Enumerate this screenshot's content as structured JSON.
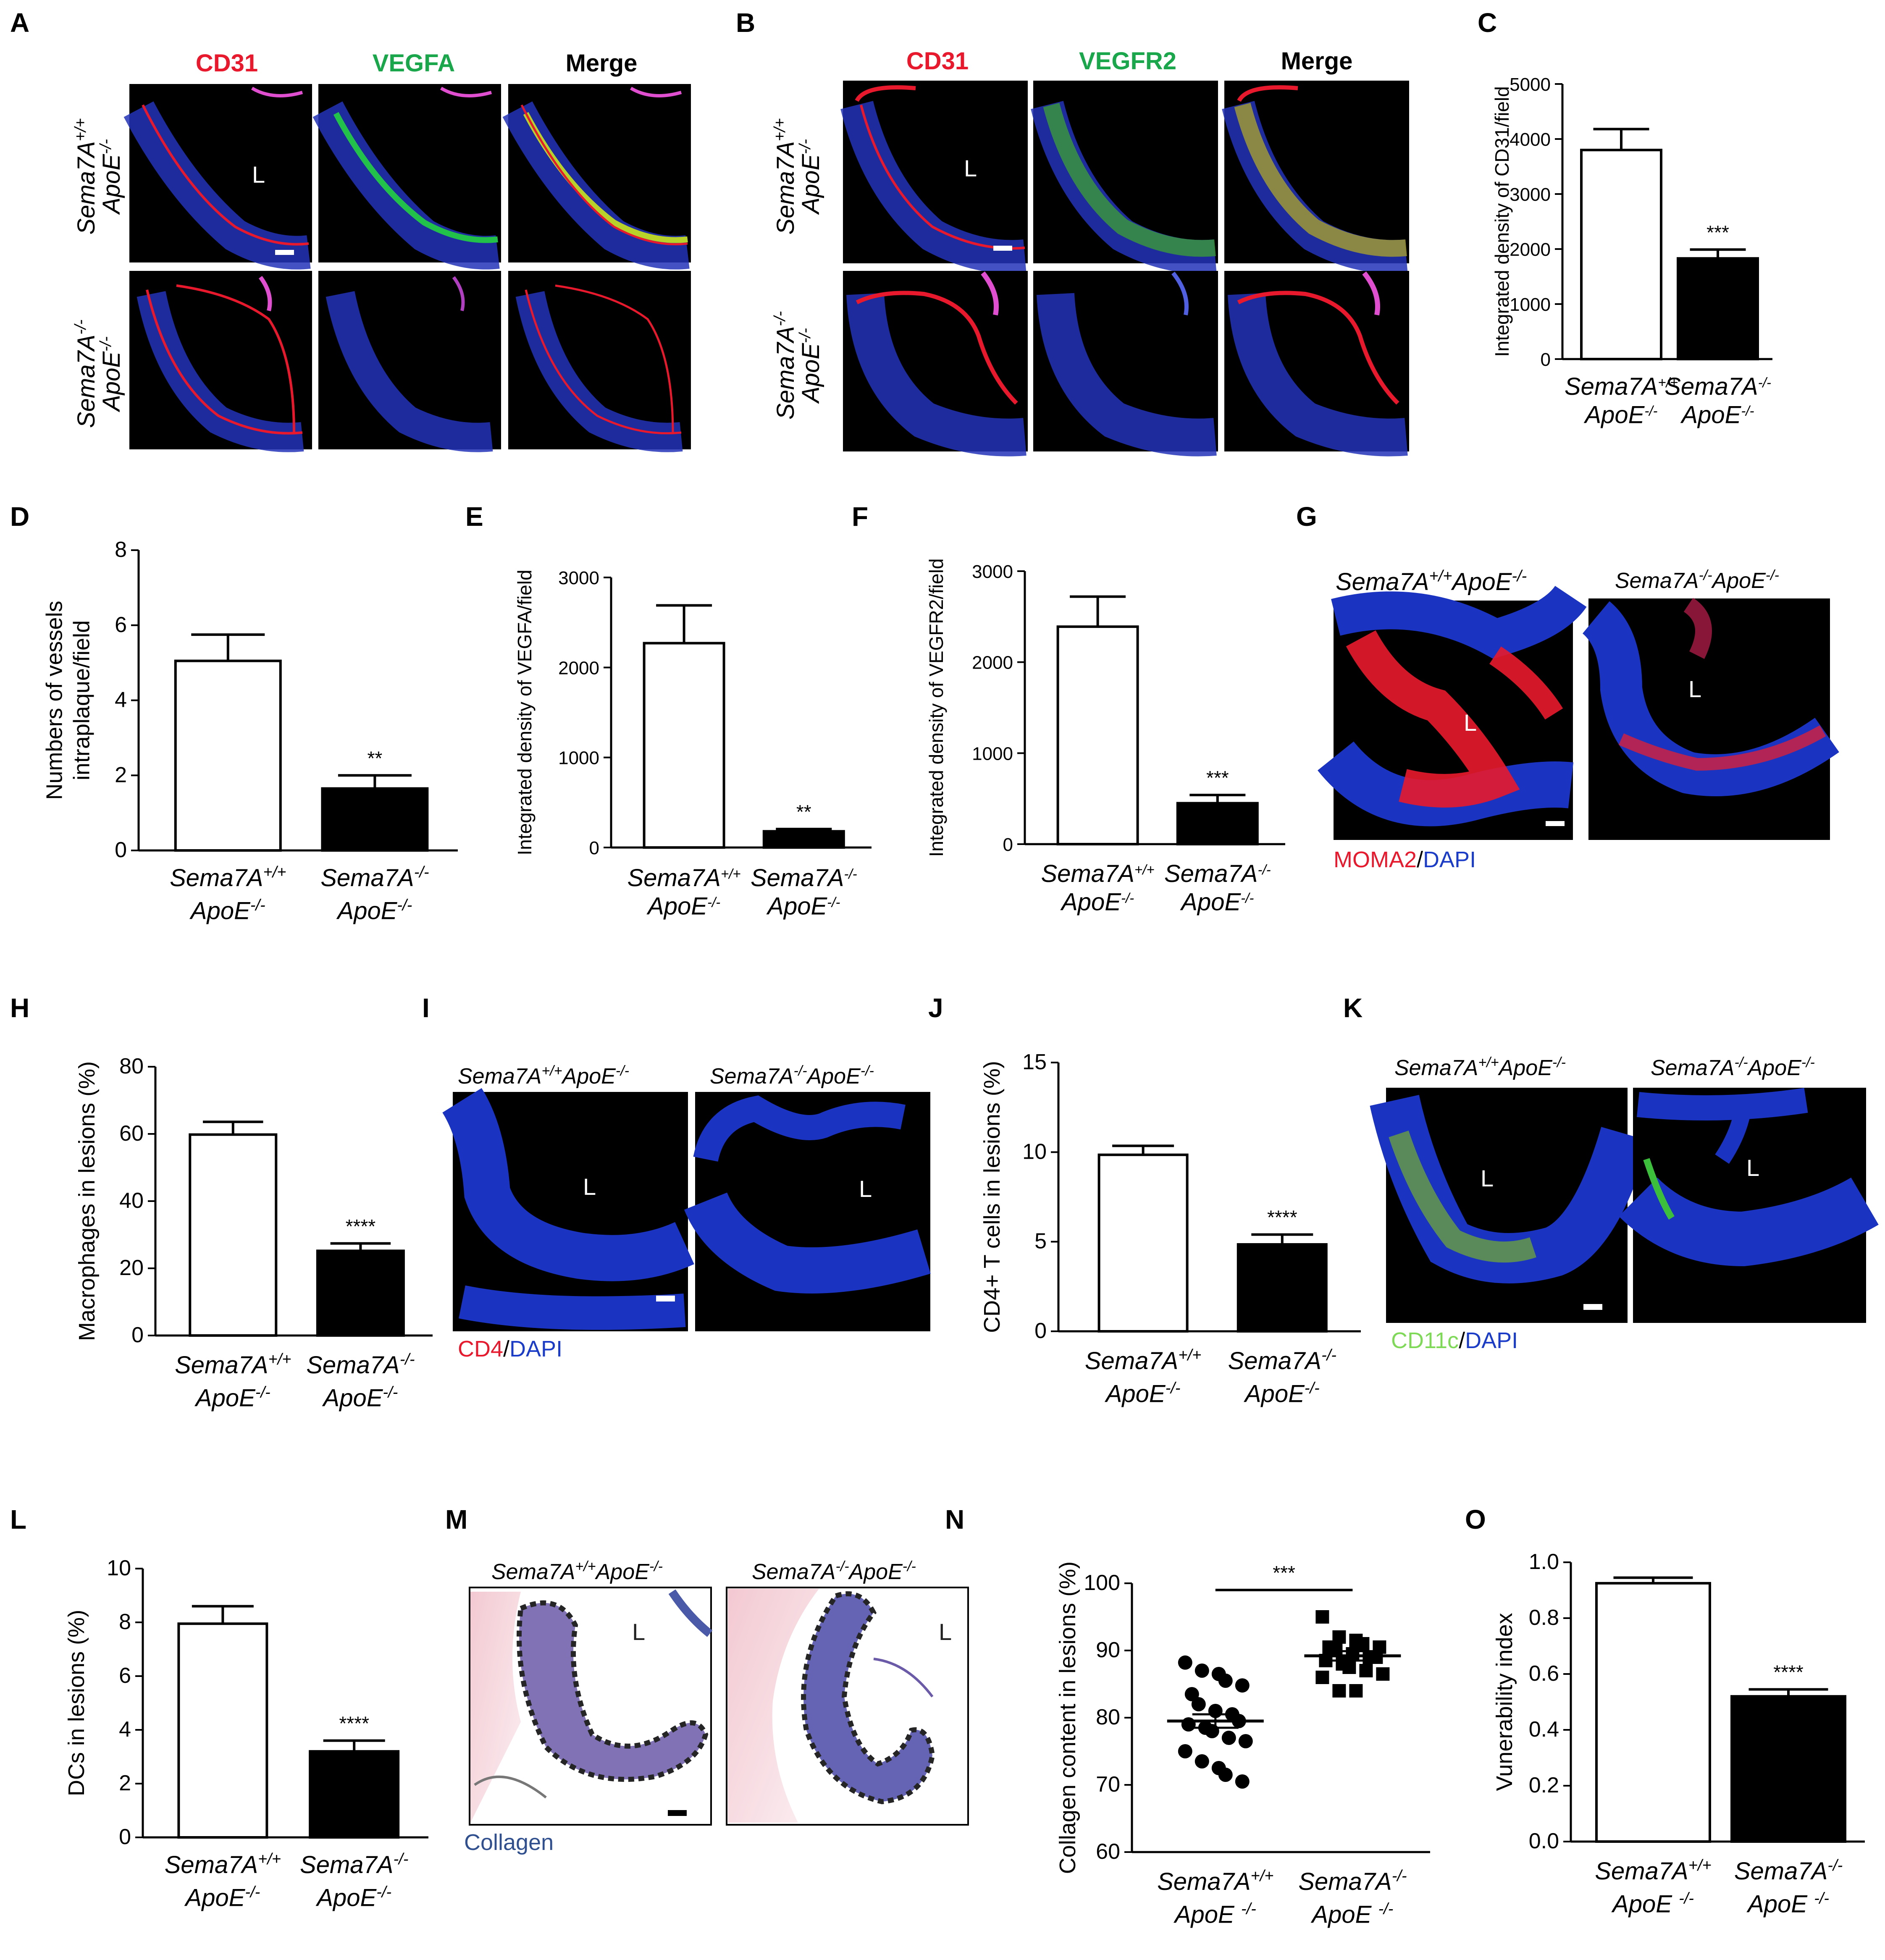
{
  "colors": {
    "red_stain": "#e8192c",
    "green_stain": "#1aa64b",
    "blue_dapi": "#1a3cc8",
    "light_green": "#7ed957",
    "collagen_blue": "#2f4f8f",
    "bar_wt": "#ffffff",
    "bar_ko": "#000000"
  },
  "genotypes": {
    "wt_line1": "Sema7A",
    "wt_sup": "+/+",
    "ko_line1": "Sema7A",
    "ko_sup": "-/-",
    "apoe": "ApoE",
    "apoe_sup": "-/-",
    "wt_full": "Sema7A",
    "ko_full": "Sema7A"
  },
  "lumen_label": "L",
  "panels": {
    "A": {
      "letter": "A",
      "stains": [
        "CD31",
        "VEGFA",
        "Merge"
      ]
    },
    "B": {
      "letter": "B",
      "stains": [
        "CD31",
        "VEGFR2",
        "Merge"
      ]
    },
    "C": {
      "letter": "C"
    },
    "D": {
      "letter": "D"
    },
    "E": {
      "letter": "E"
    },
    "F": {
      "letter": "F"
    },
    "G": {
      "letter": "G",
      "legend_a": "MOMA2",
      "legend_sep": "/",
      "legend_b": "DAPI"
    },
    "H": {
      "letter": "H"
    },
    "I": {
      "letter": "I",
      "legend_a": "CD4",
      "legend_sep": "/",
      "legend_b": "DAPI"
    },
    "J": {
      "letter": "J"
    },
    "K": {
      "letter": "K",
      "legend_a": "CD11c",
      "legend_sep": "/",
      "legend_b": "DAPI"
    },
    "L": {
      "letter": "L"
    },
    "M": {
      "letter": "M",
      "legend": "Collagen"
    },
    "N": {
      "letter": "N"
    },
    "O": {
      "letter": "O"
    }
  },
  "chart_data": [
    {
      "panel": "C",
      "type": "bar",
      "categories": [
        "Sema7A+/+ ApoE-/-",
        "Sema7A-/- ApoE-/-"
      ],
      "values": [
        3800,
        1830
      ],
      "errors": [
        380,
        160
      ],
      "ylabel": "Integrated density of CD31/field",
      "ylim": [
        0,
        5000
      ],
      "yticks": [
        0,
        1000,
        2000,
        3000,
        4000,
        5000
      ],
      "significance": "***"
    },
    {
      "panel": "D",
      "type": "bar",
      "categories": [
        "Sema7A+/+ ApoE-/-",
        "Sema7A-/- ApoE-/-"
      ],
      "values": [
        5.05,
        1.65
      ],
      "errors": [
        0.7,
        0.35
      ],
      "ylabel": "Numbers of vessels intraplaque/field",
      "ylim": [
        0,
        8
      ],
      "yticks": [
        0,
        2,
        4,
        6,
        8
      ],
      "significance": "**"
    },
    {
      "panel": "E",
      "type": "bar",
      "categories": [
        "Sema7A+/+ ApoE-/-",
        "Sema7A-/- ApoE-/-"
      ],
      "values": [
        2270,
        180
      ],
      "errors": [
        420,
        25
      ],
      "ylabel": "Integrated density of VEGFA/field",
      "ylim": [
        0,
        3000
      ],
      "yticks": [
        0,
        1000,
        2000,
        3000
      ],
      "significance": "**"
    },
    {
      "panel": "F",
      "type": "bar",
      "categories": [
        "Sema7A+/+ ApoE-/-",
        "Sema7A-/- ApoE-/-"
      ],
      "values": [
        2390,
        450
      ],
      "errors": [
        330,
        90
      ],
      "ylabel": "Integrated density of VEGFR2/field",
      "ylim": [
        0,
        3000
      ],
      "yticks": [
        0,
        1000,
        2000,
        3000
      ],
      "significance": "***"
    },
    {
      "panel": "H",
      "type": "bar",
      "categories": [
        "Sema7A+/+ ApoE-/-",
        "Sema7A-/- ApoE-/-"
      ],
      "values": [
        59.8,
        25.2
      ],
      "errors": [
        3.8,
        2.2
      ],
      "ylabel": "Macrophages in lesions (%)",
      "ylim": [
        0,
        80
      ],
      "yticks": [
        0,
        20,
        40,
        60,
        80
      ],
      "significance": "****"
    },
    {
      "panel": "J",
      "type": "bar",
      "categories": [
        "Sema7A+/+ ApoE-/-",
        "Sema7A-/- ApoE-/-"
      ],
      "values": [
        9.85,
        4.85
      ],
      "errors": [
        0.5,
        0.55
      ],
      "ylabel": "CD4+ T cells in lesions (%)",
      "ylim": [
        0,
        15
      ],
      "yticks": [
        0,
        5,
        10,
        15
      ],
      "significance": "****"
    },
    {
      "panel": "L",
      "type": "bar",
      "categories": [
        "Sema7A+/+ ApoE-/-",
        "Sema7A-/- ApoE-/-"
      ],
      "values": [
        7.95,
        3.2
      ],
      "errors": [
        0.65,
        0.4
      ],
      "ylabel": "DCs in lesions (%)",
      "ylim": [
        0,
        10
      ],
      "yticks": [
        0,
        2,
        4,
        6,
        8,
        10
      ],
      "significance": "****"
    },
    {
      "panel": "N",
      "type": "scatter",
      "categories": [
        "Sema7A+/+ ApoE -/-",
        "Sema7A-/- ApoE -/-"
      ],
      "groups": [
        {
          "mean": 79.5,
          "sem": 1.0,
          "points": [
            88.2,
            87.0,
            86.5,
            85.5,
            84.8,
            83.5,
            82.0,
            81.0,
            80.5,
            79.5,
            79.0,
            78.5,
            78.0,
            77.0,
            76.5,
            75.0,
            73.5,
            72.5,
            71.5,
            70.5
          ]
        },
        {
          "mean": 89.2,
          "sem": 0.7,
          "points": [
            95.0,
            92.0,
            91.5,
            91.0,
            90.5,
            90.5,
            90.0,
            89.5,
            89.0,
            89.0,
            88.5,
            88.0,
            87.5,
            87.0,
            86.5,
            86.0,
            84.0,
            84.0
          ]
        }
      ],
      "ylabel": "Collagen content in lesions (%)",
      "ylim": [
        60,
        100
      ],
      "yticks": [
        60,
        70,
        80,
        90,
        100
      ],
      "significance": "***"
    },
    {
      "panel": "O",
      "type": "bar",
      "categories": [
        "Sema7A+/+ ApoE -/-",
        "Sema7A-/- ApoE -/-"
      ],
      "values": [
        0.925,
        0.52
      ],
      "errors": [
        0.02,
        0.025
      ],
      "ylabel": "Vunerability index",
      "ylim": [
        0,
        1.0
      ],
      "yticks": [
        0.0,
        0.2,
        0.4,
        0.6,
        0.8,
        1.0
      ],
      "significance": "****"
    }
  ]
}
